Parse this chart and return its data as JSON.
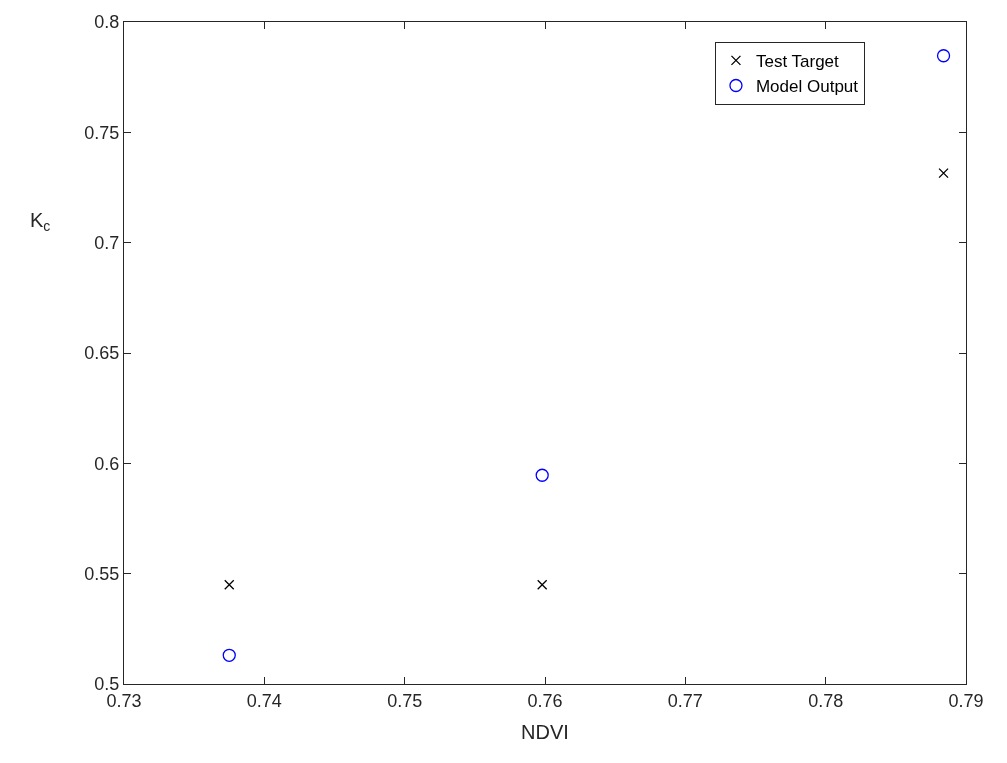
{
  "chart_data": {
    "type": "scatter",
    "xlabel": "NDVI",
    "ylabel": "K$_{c}$",
    "xlim": [
      0.73,
      0.79
    ],
    "xticks": [
      0.73,
      0.74,
      0.75,
      0.76,
      0.77,
      0.78,
      0.79
    ],
    "ylim": [
      0.5,
      0.8
    ],
    "yticks": [
      0.5,
      0.55,
      0.6,
      0.65,
      0.7,
      0.75,
      0.8
    ],
    "legend": "top right",
    "series": [
      {
        "name": "Test Target",
        "color": "#000000",
        "marker": "cross",
        "x": [
          0.7375,
          0.7598,
          0.7884
        ],
        "values": [
          0.545,
          0.545,
          0.7315
        ]
      },
      {
        "name": "Model Output",
        "color": "#0000ff",
        "marker": "circle",
        "x": [
          0.7375,
          0.7598,
          0.7884
        ],
        "values": [
          0.513,
          0.5946,
          0.7847
        ]
      }
    ]
  }
}
